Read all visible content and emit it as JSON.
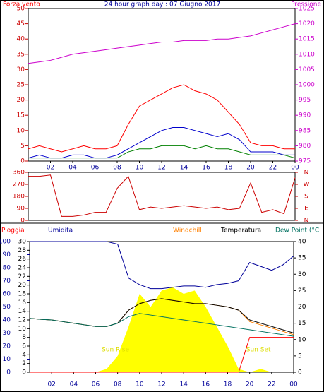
{
  "chart_data": [
    {
      "type": "line",
      "title": "24 hour graph day : 07 Giugno 2017",
      "x": [
        0,
        1,
        2,
        3,
        4,
        5,
        6,
        7,
        8,
        9,
        10,
        11,
        12,
        13,
        14,
        15,
        16,
        17,
        18,
        19,
        20,
        21,
        22,
        23,
        24
      ],
      "xlim": [
        0,
        24
      ],
      "xticks": [
        {
          "value": 2,
          "label": "02"
        },
        {
          "value": 4,
          "label": "04"
        },
        {
          "value": 6,
          "label": "06"
        },
        {
          "value": 8,
          "label": "08"
        },
        10,
        12,
        14,
        16,
        18,
        20,
        22,
        {
          "value": 24,
          "label": "00"
        }
      ],
      "ylim": [
        0,
        50
      ],
      "yticks": [
        0,
        5,
        10,
        15,
        20,
        25,
        30,
        35,
        40,
        45,
        50
      ],
      "y2lim": [
        975,
        1025
      ],
      "y2ticks": [
        975,
        980,
        985,
        990,
        995,
        1000,
        1005,
        1010,
        1015,
        1020,
        1025
      ],
      "series": [
        {
          "name": "Forza vento",
          "color": "#ff0000",
          "values": [
            4,
            5,
            4,
            3,
            4,
            5,
            4,
            4,
            5,
            12,
            18,
            20,
            22,
            24,
            25,
            23,
            22,
            20,
            16,
            12,
            6,
            5,
            5,
            4,
            4
          ]
        },
        {
          "color": "#0000cc",
          "values": [
            1,
            2,
            1,
            1,
            2,
            2,
            1,
            1,
            2,
            4,
            6,
            8,
            10,
            11,
            11,
            10,
            9,
            8,
            9,
            7,
            3,
            3,
            3,
            2,
            2
          ]
        },
        {
          "color": "#008000",
          "values": [
            1,
            1,
            1,
            1,
            1,
            1,
            1,
            1,
            1,
            3,
            4,
            4,
            5,
            5,
            5,
            4,
            5,
            4,
            4,
            3,
            2,
            2,
            2,
            2,
            1
          ]
        },
        {
          "name": "Pressione",
          "color": "#cc00cc",
          "axis": "y2",
          "values": [
            1007,
            1007.5,
            1008,
            1009,
            1010,
            1010.5,
            1011,
            1011.5,
            1012,
            1012.5,
            1013,
            1013.5,
            1014,
            1014,
            1014.5,
            1014.5,
            1014.5,
            1015,
            1015,
            1015.5,
            1016,
            1017,
            1018,
            1019,
            1020
          ]
        }
      ]
    },
    {
      "type": "line",
      "x": [
        0,
        1,
        2,
        3,
        4,
        5,
        6,
        7,
        8,
        9,
        10,
        11,
        12,
        13,
        14,
        15,
        16,
        17,
        18,
        19,
        20,
        21,
        22,
        23,
        24
      ],
      "xlim": [
        0,
        24
      ],
      "ylim": [
        0,
        360
      ],
      "yticks": [
        0,
        90,
        180,
        270,
        360
      ],
      "y2lim": [
        0,
        360
      ],
      "y2ticks": [
        {
          "value": 0,
          "label": "N"
        },
        {
          "value": 90,
          "label": "E"
        },
        {
          "value": 180,
          "label": "S"
        },
        {
          "value": 270,
          "label": "W"
        },
        {
          "value": 360,
          "label": "N"
        }
      ],
      "series": [
        {
          "color": "#cc0000",
          "values": [
            330,
            330,
            340,
            30,
            30,
            40,
            60,
            60,
            240,
            330,
            80,
            100,
            90,
            100,
            110,
            100,
            90,
            100,
            80,
            90,
            280,
            60,
            80,
            50,
            320
          ]
        }
      ]
    },
    {
      "type": "line",
      "x": [
        0,
        1,
        2,
        3,
        4,
        5,
        6,
        7,
        8,
        9,
        10,
        11,
        12,
        13,
        14,
        15,
        16,
        17,
        18,
        19,
        20,
        21,
        22,
        23,
        24
      ],
      "xlim": [
        0,
        24
      ],
      "xticks": [
        {
          "value": 2,
          "label": "02"
        },
        {
          "value": 4,
          "label": "04"
        },
        {
          "value": 6,
          "label": "06"
        },
        {
          "value": 8,
          "label": "08"
        },
        10,
        12,
        14,
        16,
        18,
        20,
        22,
        {
          "value": 24,
          "label": "00"
        }
      ],
      "ylim": [
        0,
        100
      ],
      "yticks": [
        0,
        10,
        20,
        30,
        40,
        50,
        60,
        70,
        80,
        90,
        100
      ],
      "rain_lim": [
        0,
        30
      ],
      "rain_ticks": [
        0,
        2,
        4,
        6,
        8,
        10,
        12,
        14,
        16,
        18,
        20,
        22,
        24,
        26,
        28,
        30
      ],
      "y2lim": [
        0,
        40
      ],
      "y2ticks": [
        0,
        5,
        10,
        15,
        20,
        25,
        30,
        35,
        40
      ],
      "annotations": [
        "Sun Rise",
        "Sun Set"
      ],
      "series": [
        {
          "color": "#ffff00",
          "axis": "y2",
          "area": true,
          "values": [
            0,
            0,
            0,
            0,
            0,
            0,
            0,
            1,
            5,
            14,
            24,
            20,
            25,
            26,
            24,
            25,
            20,
            14,
            8,
            1,
            0,
            1,
            0,
            0,
            0
          ]
        },
        {
          "name": "Pioggia",
          "color": "#ff0000",
          "axis": "rain",
          "values": [
            0,
            0,
            0,
            0,
            0,
            0,
            0,
            0,
            0,
            0,
            0,
            0,
            0,
            0,
            0,
            0,
            0,
            0,
            0,
            0,
            8,
            8,
            8,
            8,
            8
          ]
        },
        {
          "name": "Umidita",
          "color": "#000099",
          "values": [
            100,
            100,
            100,
            100,
            100,
            100,
            100,
            100,
            98,
            72,
            67,
            64,
            64,
            65,
            66,
            66,
            65,
            67,
            68,
            70,
            84,
            81,
            78,
            82,
            89
          ]
        },
        {
          "name": "Windchill",
          "color": "#ff8000",
          "axis": "y2",
          "values": [
            16.5,
            16.2,
            16,
            15.5,
            15,
            14.5,
            14,
            14,
            15,
            19,
            21,
            22,
            22.5,
            22,
            21.5,
            21,
            21,
            20.5,
            20,
            19,
            15.5,
            14.5,
            13.5,
            12.5,
            11.5
          ]
        },
        {
          "name": "Temperatura",
          "color": "#000000",
          "axis": "y2",
          "values": [
            16.5,
            16.2,
            16,
            15.5,
            15,
            14.5,
            14,
            14,
            15,
            19,
            21,
            22,
            22.5,
            22,
            21.5,
            21,
            21,
            20.5,
            20,
            19,
            16,
            15,
            14,
            13,
            12
          ]
        },
        {
          "name": "Dew Point (°C",
          "color": "#007060",
          "axis": "y2",
          "values": [
            16.5,
            16.2,
            16,
            15.5,
            15,
            14.5,
            14,
            14,
            15,
            17,
            18,
            17.5,
            17,
            16.5,
            16,
            15.5,
            15,
            14.5,
            14,
            13.5,
            13,
            12.5,
            12,
            11.5,
            11
          ]
        }
      ]
    }
  ]
}
